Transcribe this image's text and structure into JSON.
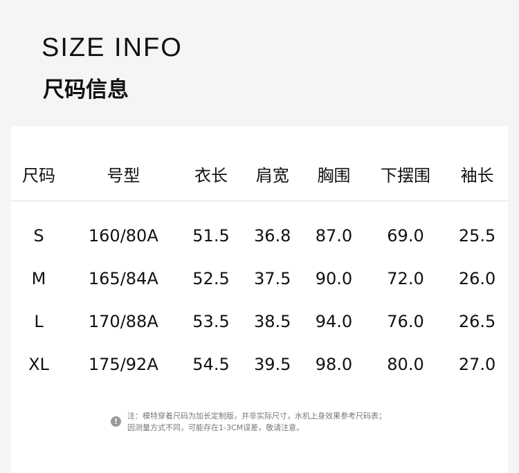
{
  "title_en": "SIZE INFO",
  "title_cn": "尺码信息",
  "headers": [
    "尺码",
    "号型",
    "衣长",
    "肩宽",
    "胸围",
    "下摆围",
    "袖长"
  ],
  "rows": [
    [
      "S",
      "160/80A",
      "51.5",
      "36.8",
      "87.0",
      "69.0",
      "25.5"
    ],
    [
      "M",
      "165/84A",
      "52.5",
      "37.5",
      "90.0",
      "72.0",
      "26.0"
    ],
    [
      "L",
      "170/88A",
      "53.5",
      "38.5",
      "94.0",
      "76.0",
      "26.5"
    ],
    [
      "XL",
      "175/92A",
      "54.5",
      "39.5",
      "98.0",
      "80.0",
      "27.0"
    ]
  ],
  "note": {
    "icon": "exclamation-icon",
    "line1": "注：模特穿着尺码为加长定制版，并非实际尺寸，水机上身效果参考尺码表；",
    "line2": "因测量方式不同，可能存在1-3CM误差，敬请注意。"
  }
}
